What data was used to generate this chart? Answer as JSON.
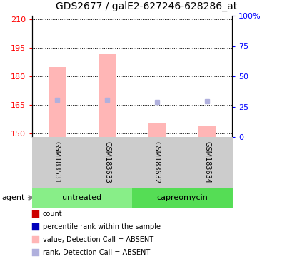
{
  "title": "GDS2677 / galE2-627246-628286_at",
  "samples": [
    "GSM183531",
    "GSM183633",
    "GSM183632",
    "GSM183634"
  ],
  "ylim_left": [
    148,
    212
  ],
  "ylim_right": [
    0,
    100
  ],
  "yticks_left": [
    150,
    165,
    180,
    195,
    210
  ],
  "yticks_right": [
    0,
    25,
    50,
    75,
    100
  ],
  "bar_values": [
    185.0,
    192.0,
    155.5,
    153.5
  ],
  "rank_values": [
    167.5,
    167.5,
    166.5,
    167.0
  ],
  "bar_color_absent": "#FFB6B6",
  "rank_color_absent": "#B0B0DD",
  "legend_items": [
    {
      "color": "#CC0000",
      "label": "count"
    },
    {
      "color": "#0000BB",
      "label": "percentile rank within the sample"
    },
    {
      "color": "#FFB6B6",
      "label": "value, Detection Call = ABSENT"
    },
    {
      "color": "#B0B0DD",
      "label": "rank, Detection Call = ABSENT"
    }
  ],
  "group_color_untreated": "#88EE88",
  "group_color_capreomycin": "#55DD55",
  "agent_label": "agent",
  "figsize": [
    4.1,
    3.84
  ],
  "dpi": 100
}
